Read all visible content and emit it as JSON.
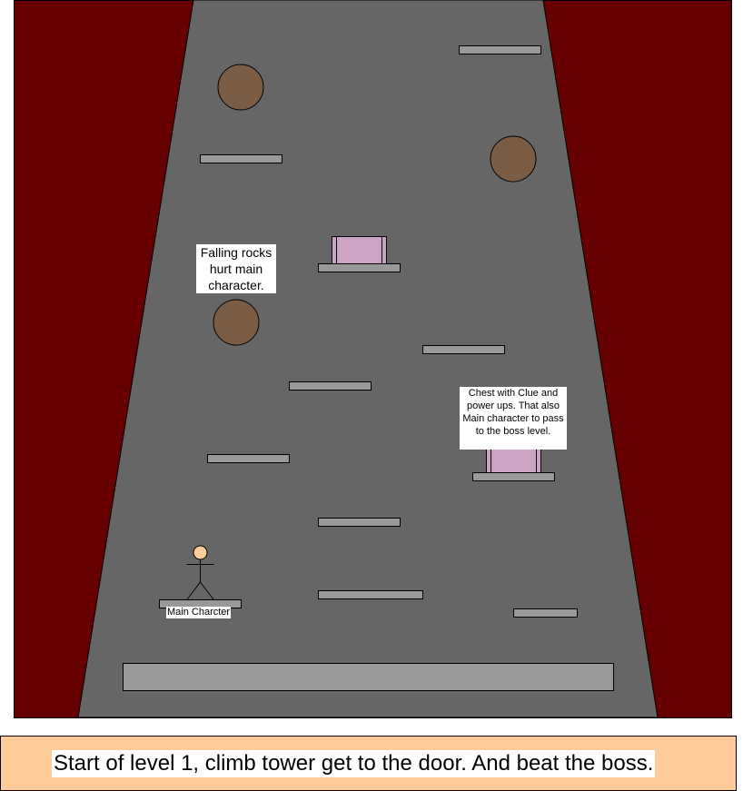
{
  "colors": {
    "curtain": "#660000",
    "tower": "#666666",
    "platform": "#999999",
    "rock": "#7a5c45",
    "chest": "#cda3c4",
    "player_head": "#ffcc99",
    "caption_bg": "#ffcc99",
    "floor": "#999999"
  },
  "sprites": {
    "rocks": [
      "rock",
      "rock",
      "rock"
    ],
    "chests": [
      "chest",
      "chest"
    ],
    "player": "stick-figure"
  },
  "notes": {
    "rocks": "Falling rocks hurt main character.",
    "chest": "Chest with Clue and power ups. That also Main character to pass to the boss level.",
    "player": "Main Charcter"
  },
  "caption": "Start of level 1, climb tower get to the door. And beat the boss."
}
